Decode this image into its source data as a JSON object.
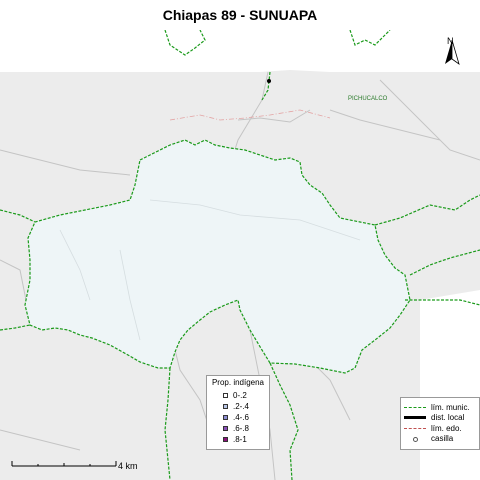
{
  "map": {
    "title": "Chiapas 89 - SUNUAPA",
    "place_labels": [
      "PICHUCALCO"
    ],
    "north_label": "N",
    "scale_label": "4 km",
    "colors": {
      "background": "#ffffff",
      "surrounding_land": "#ececec",
      "district_fill": "#eef5f7",
      "municipal_border": "#1a9a1a",
      "roads": "#c7c7c7",
      "state_border": "#e0a0a0"
    }
  },
  "legend_indigena": {
    "title": "Prop. indígena",
    "items": [
      {
        "label": "0-.2",
        "color": "#ffffff"
      },
      {
        "label": ".2-.4",
        "color": "#b9c6e6"
      },
      {
        "label": ".4-.6",
        "color": "#8b8bd1"
      },
      {
        "label": ".6-.8",
        "color": "#8a4fb8"
      },
      {
        "label": ".8-1",
        "color": "#8c0f7a"
      }
    ]
  },
  "legend_lines": {
    "items": [
      {
        "label": "lím. munic.",
        "style": "green-dashed"
      },
      {
        "label": "dist. local",
        "style": "black-thick"
      },
      {
        "label": "lím. edo.",
        "style": "red-dashdot"
      },
      {
        "label": "casilla",
        "style": "circle"
      }
    ]
  }
}
